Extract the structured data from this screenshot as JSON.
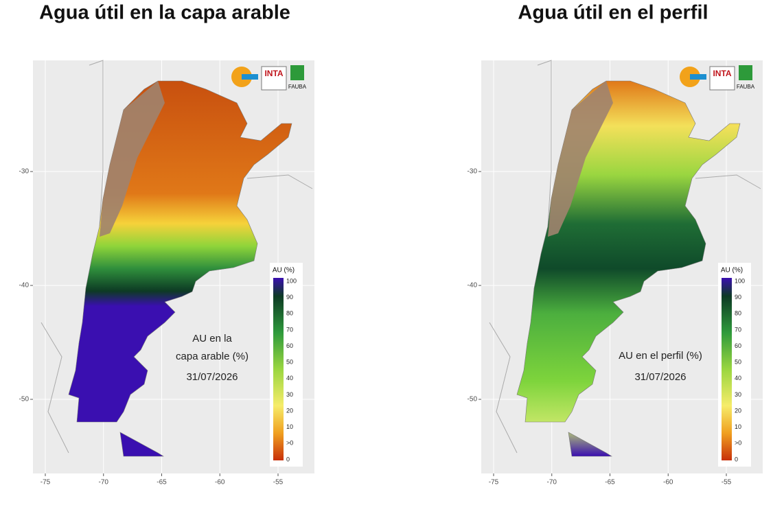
{
  "panels": [
    {
      "title": "Agua útil en la capa arable",
      "annotation": [
        "AU en la",
        "capa arable (%)"
      ],
      "date": "31/07/2026",
      "legend": {
        "title": "AU (%)",
        "labels": [
          "100",
          "90",
          "80",
          "70",
          "60",
          "50",
          "40",
          "30",
          "20",
          "10",
          ">0",
          "0"
        ]
      },
      "xticks": [
        -75,
        -70,
        -65,
        -60,
        -55
      ],
      "yticks": [
        -30,
        -40,
        -50
      ],
      "logos": [
        "INTA",
        "FAUBA"
      ]
    },
    {
      "title": "Agua útil en el perfil",
      "annotation": [
        "AU en el perfil (%)"
      ],
      "date": "31/07/2026",
      "legend": {
        "title": "AU (%)",
        "labels": [
          "100",
          "90",
          "80",
          "70",
          "60",
          "50",
          "40",
          "30",
          "20",
          "10",
          ">0",
          "0"
        ]
      },
      "xticks": [
        -75,
        -70,
        -65,
        -60,
        -55
      ],
      "yticks": [
        -30,
        -40,
        -50
      ],
      "logos": [
        "INTA",
        "FAUBA"
      ]
    }
  ]
}
